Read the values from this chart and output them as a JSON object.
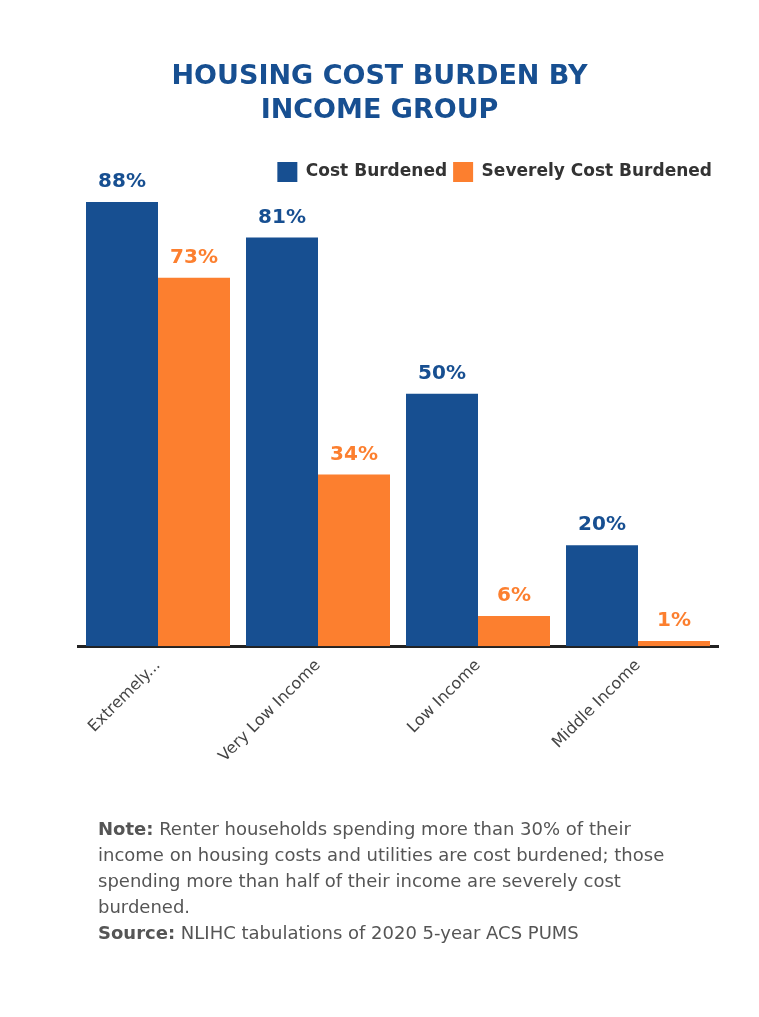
{
  "chart_data": {
    "type": "bar",
    "title": "HOUSING COST BURDEN BY INCOME GROUP",
    "categories": [
      "Extremely...",
      "Very Low Income",
      "Low Income",
      "Middle Income"
    ],
    "series": [
      {
        "name": "Cost Burdened",
        "color": "#174f91",
        "values": [
          88,
          81,
          50,
          20
        ],
        "value_labels": [
          "88%",
          "81%",
          "50%",
          "20%"
        ]
      },
      {
        "name": "Severely Cost Burdened",
        "color": "#fc7f2f",
        "values": [
          73,
          34,
          6,
          1
        ],
        "value_labels": [
          "73%",
          "34%",
          "6%",
          "1%"
        ]
      }
    ],
    "grid": false,
    "legend": "top right",
    "tick_labels": "x",
    "annotations": [
      "Note: Renter households spending more than 30% of their income on housing costs and utilities are cost burdened; those spending more than half of their income are severely cost burdened.",
      "Source: NLIHC tabulations of 2020 5-year ACS PUMS"
    ]
  }
}
